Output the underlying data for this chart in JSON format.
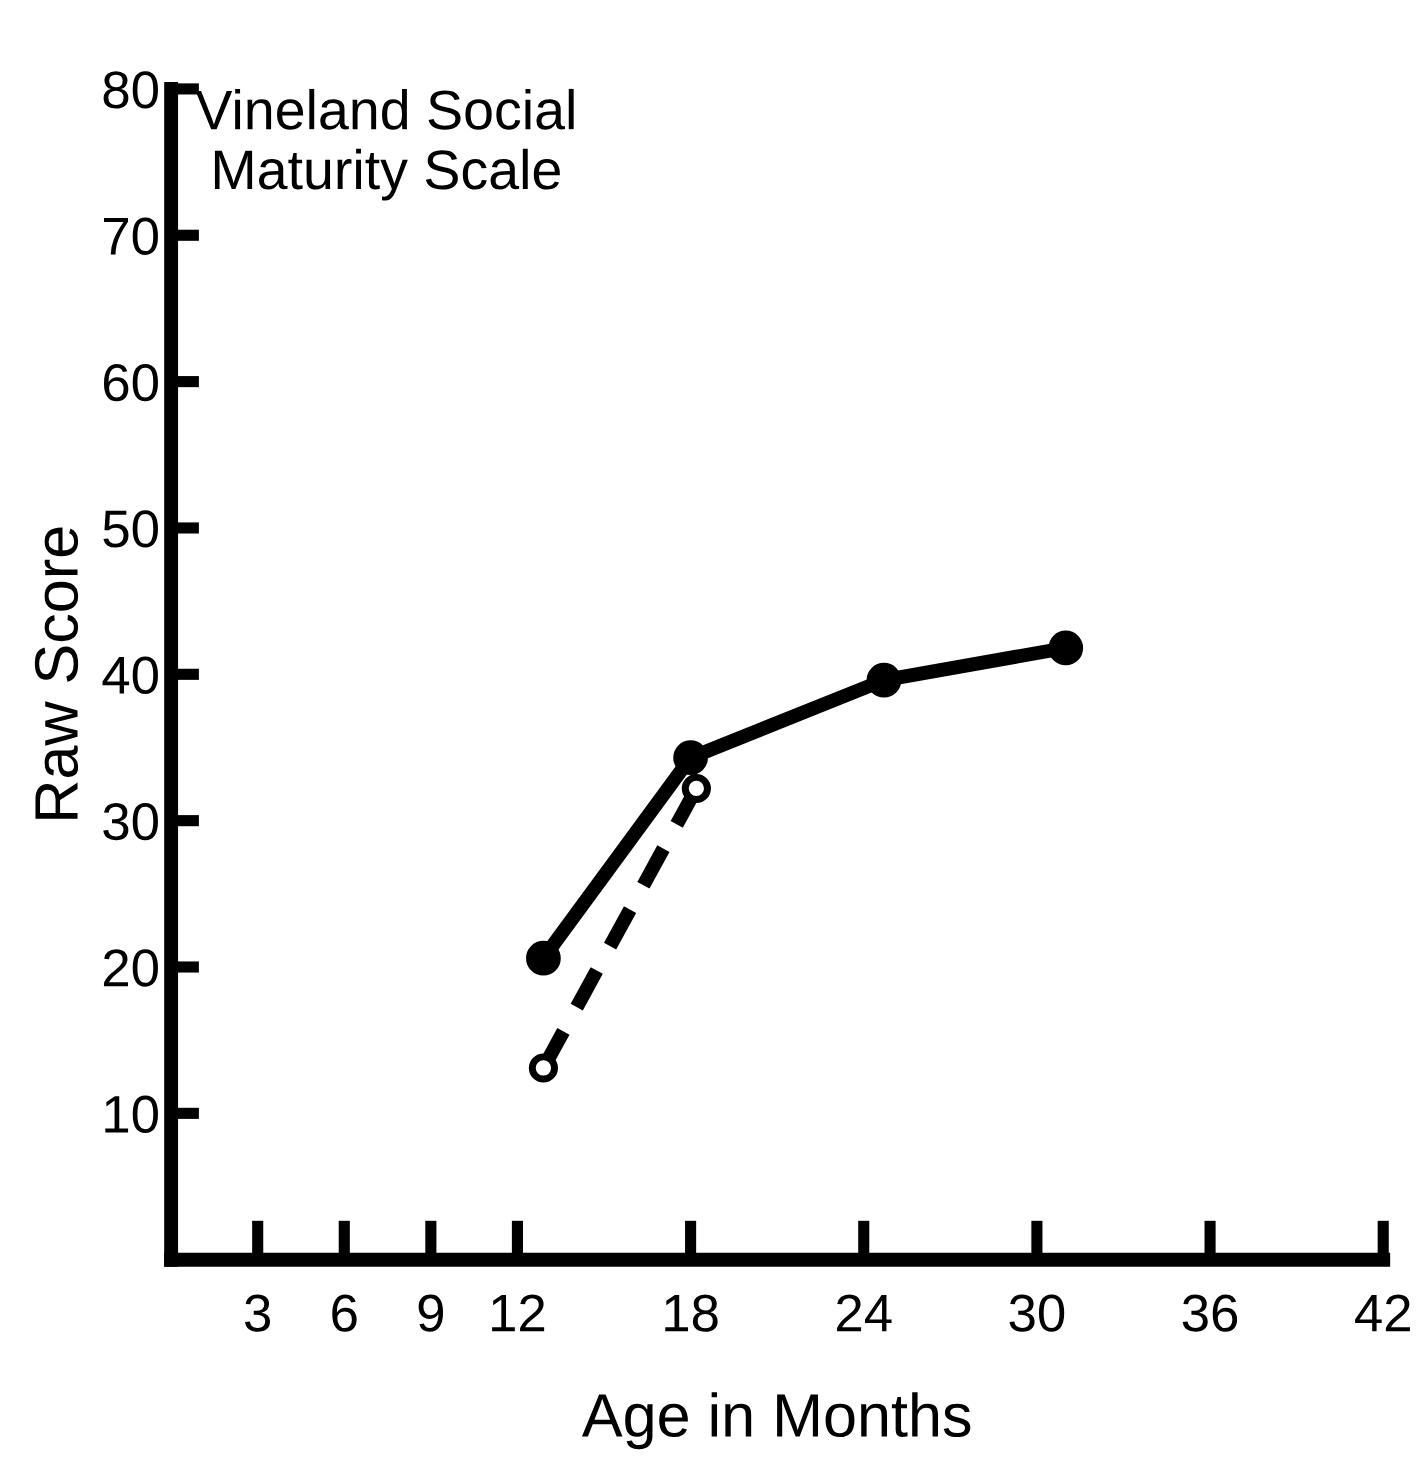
{
  "chart_data": {
    "type": "line",
    "title": "Vineland Social\nMaturity Scale",
    "xlabel": "Age in Months",
    "ylabel": "Raw Score",
    "xlim": [
      0,
      42
    ],
    "ylim": [
      0,
      80
    ],
    "xticks": [
      3,
      6,
      9,
      12,
      18,
      24,
      30,
      36,
      42
    ],
    "yticks": [
      10,
      20,
      30,
      40,
      50,
      60,
      70,
      80
    ],
    "grid": false,
    "legend": false,
    "series": [
      {
        "color": "#000000",
        "x": [
          12.9,
          18,
          24.7,
          31
        ],
        "values": [
          20.6,
          34.3,
          39.6,
          41.8
        ],
        "marker": "circle",
        "line_style": "solid"
      },
      {
        "color": "#000000",
        "x": [
          12.9,
          18.2
        ],
        "values": [
          13.1,
          32.2
        ],
        "marker": "circle",
        "line_style": "dashed"
      }
    ]
  }
}
